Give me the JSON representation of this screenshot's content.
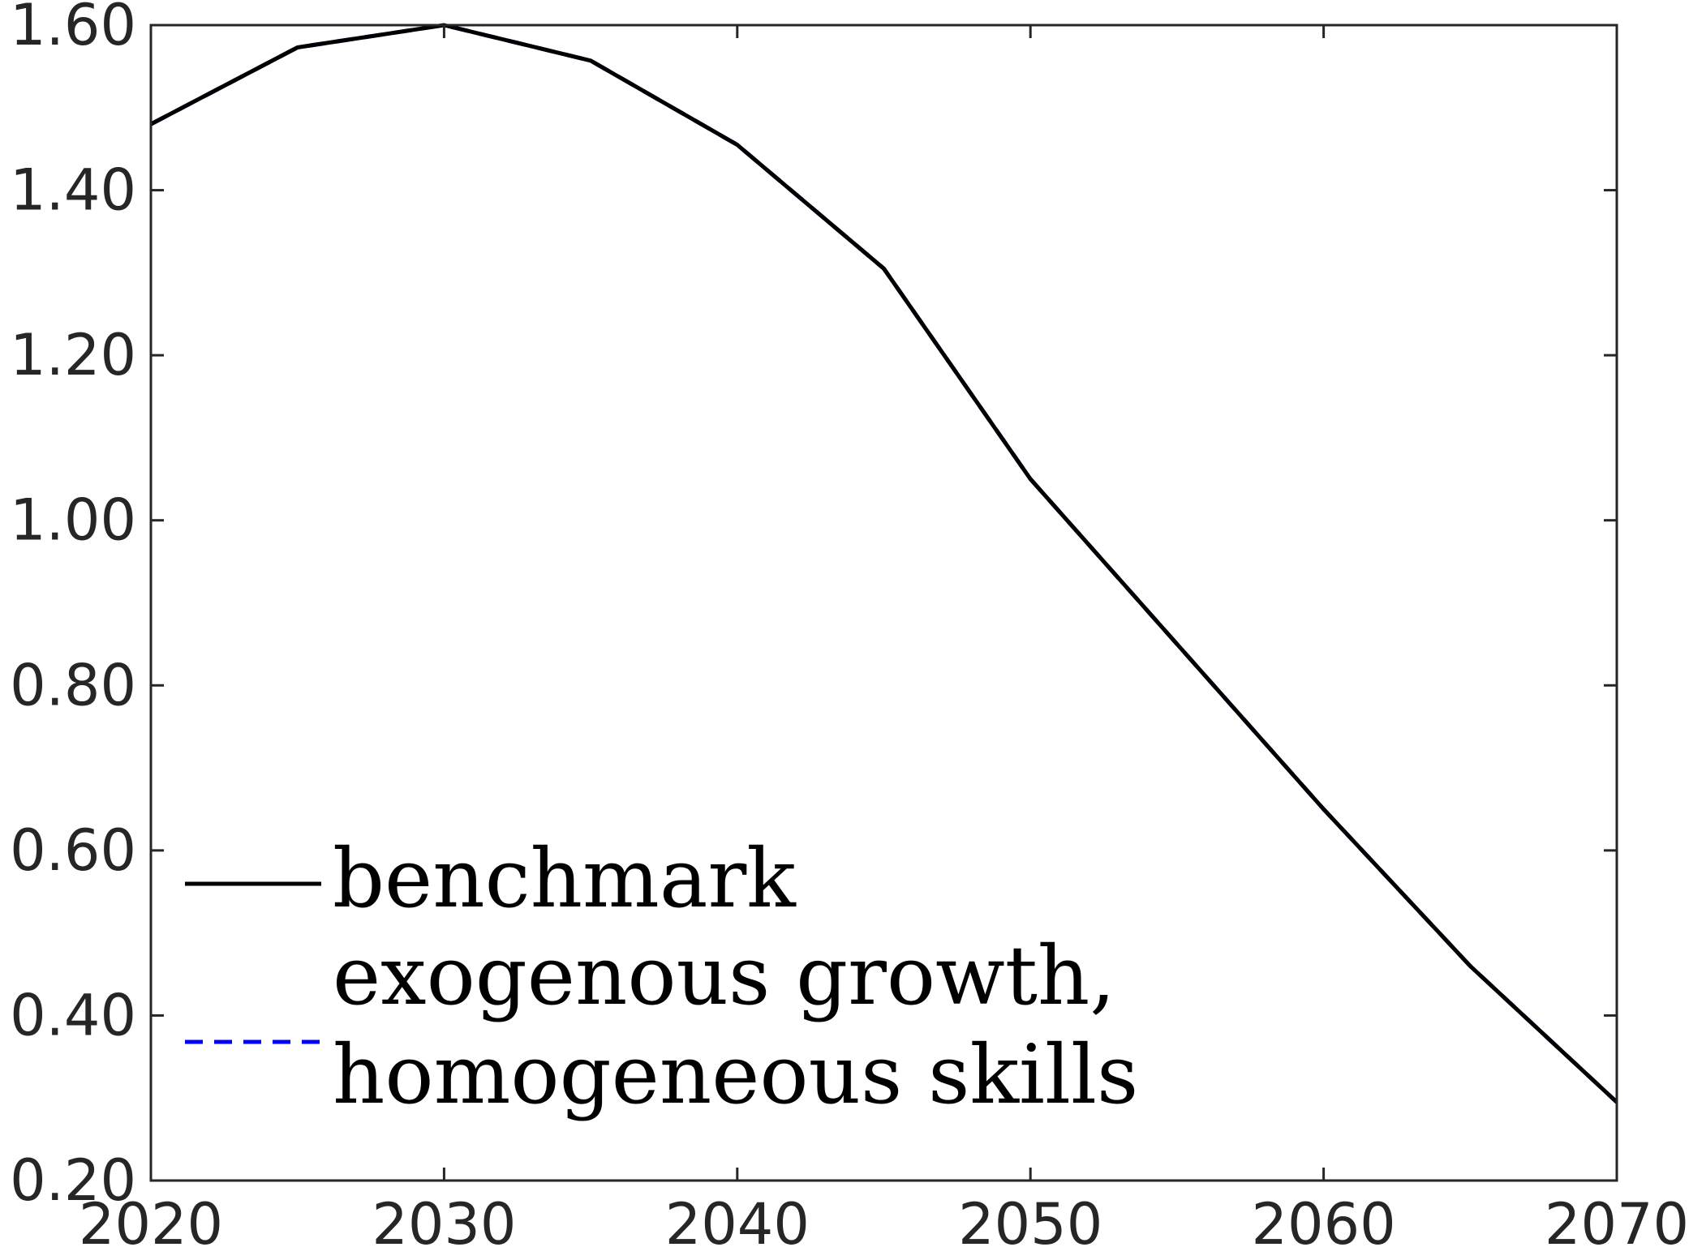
{
  "chart_data": {
    "type": "line",
    "title": "",
    "xlabel": "",
    "ylabel": "",
    "xlim": [
      2020,
      2070
    ],
    "ylim": [
      0.2,
      1.6
    ],
    "x_ticks": [
      2020,
      2030,
      2040,
      2050,
      2060,
      2070
    ],
    "y_ticks": [
      0.2,
      0.4,
      0.6,
      0.8,
      1.0,
      1.2,
      1.4,
      1.6
    ],
    "x_tick_labels": [
      "2020",
      "2030",
      "2040",
      "2050",
      "2060",
      "2070"
    ],
    "y_tick_labels": [
      "0.20",
      "0.40",
      "0.60",
      "0.80",
      "1.00",
      "1.20",
      "1.40",
      "1.60"
    ],
    "grid": false,
    "legend_position": "bottom-left",
    "series": [
      {
        "name": "benchmark",
        "style": "solid",
        "color": "#000000",
        "x": [
          2020,
          2025,
          2030,
          2035,
          2040,
          2045,
          2050,
          2055,
          2060,
          2065,
          2070
        ],
        "y": [
          1.48,
          1.573,
          1.6,
          1.557,
          1.455,
          1.305,
          1.05,
          0.85,
          0.65,
          0.46,
          0.295
        ]
      },
      {
        "name": "exogenous growth, homogeneous skills",
        "name_lines": [
          "exogenous growth,",
          "homogeneous skills"
        ],
        "style": "dashed",
        "color": "#0000ff",
        "x": [
          2020,
          2025,
          2030,
          2035,
          2040,
          2045,
          2050,
          2055,
          2060,
          2065,
          2070
        ],
        "y": [
          1.48,
          1.573,
          1.6,
          1.557,
          1.455,
          1.305,
          1.05,
          0.85,
          0.65,
          0.46,
          0.295
        ]
      }
    ]
  }
}
